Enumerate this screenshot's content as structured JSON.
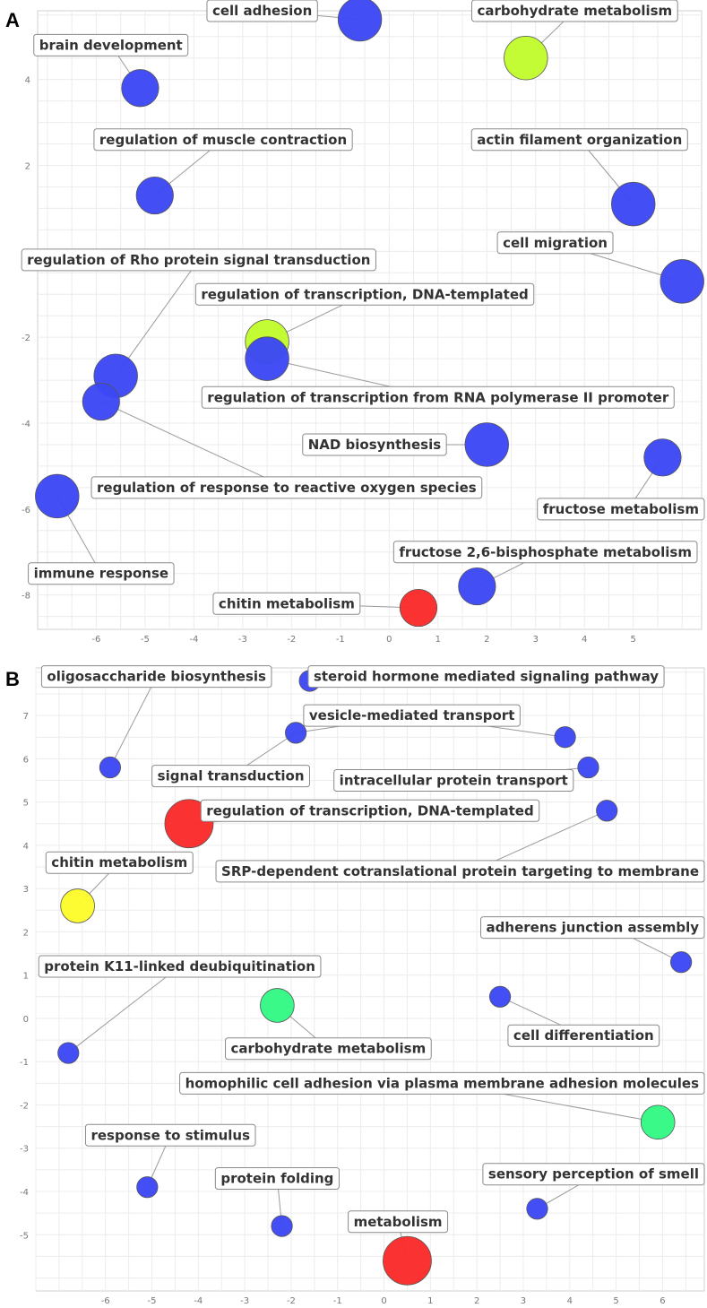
{
  "chart_data": [
    {
      "panel": "A",
      "type": "scatter",
      "title": "",
      "xlabel": "",
      "ylabel": "",
      "xlim": [
        -7.2,
        6.4
      ],
      "ylim": [
        -8.8,
        5.6
      ],
      "xticks": [
        -6,
        -5,
        -4,
        -3,
        -2,
        -1,
        0,
        1,
        2,
        3,
        4,
        5
      ],
      "yticks": [
        4,
        2,
        0,
        -2,
        -4,
        -6,
        -8
      ],
      "grid": true,
      "points": [
        {
          "label": "cell adhesion",
          "x": -0.6,
          "y": 5.4,
          "size": "large",
          "color": "#3d48f5",
          "label_pos": [
            -2.6,
            5.6
          ]
        },
        {
          "label": "carbohydrate metabolism",
          "x": 2.8,
          "y": 4.5,
          "size": "large",
          "color": "#c1fb2e",
          "label_pos": [
            3.8,
            5.6
          ]
        },
        {
          "label": "brain development",
          "x": -5.1,
          "y": 3.8,
          "size": "medium",
          "color": "#3d48f5",
          "label_pos": [
            -5.7,
            4.8
          ]
        },
        {
          "label": "regulation of muscle contraction",
          "x": -4.8,
          "y": 1.3,
          "size": "medium",
          "color": "#3d48f5",
          "label_pos": [
            -3.4,
            2.6
          ]
        },
        {
          "label": "actin filament organization",
          "x": 5.0,
          "y": 1.1,
          "size": "large",
          "color": "#3d48f5",
          "label_pos": [
            3.9,
            2.6
          ]
        },
        {
          "label": "cell migration",
          "x": 6.0,
          "y": -0.7,
          "size": "large",
          "color": "#3d48f5",
          "label_pos": [
            3.4,
            0.2
          ]
        },
        {
          "label": "regulation of Rho protein signal transduction",
          "x": -5.6,
          "y": -2.9,
          "size": "large",
          "color": "#3d48f5",
          "label_pos": [
            -3.9,
            -0.2
          ]
        },
        {
          "label": "regulation of transcription, DNA-templated",
          "x": -2.5,
          "y": -2.1,
          "size": "large",
          "color": "#c1fb2e",
          "label_pos": [
            -0.5,
            -1.0
          ]
        },
        {
          "label": "regulation of transcription from RNA polymerase II promoter",
          "x": -2.5,
          "y": -2.5,
          "size": "large",
          "color": "#3d48f5",
          "label_pos": [
            1.0,
            -3.4
          ]
        },
        {
          "label": "regulation of response to reactive oxygen species",
          "x": -5.9,
          "y": -3.5,
          "size": "medium",
          "color": "#3d48f5",
          "label_pos": [
            -2.1,
            -5.5
          ]
        },
        {
          "label": "NAD biosynthesis",
          "x": 2.0,
          "y": -4.5,
          "size": "large",
          "color": "#3d48f5",
          "label_pos": [
            -0.3,
            -4.5
          ]
        },
        {
          "label": "immune response",
          "x": -6.8,
          "y": -5.7,
          "size": "large",
          "color": "#3d48f5",
          "label_pos": [
            -5.9,
            -7.5
          ]
        },
        {
          "label": "fructose metabolism",
          "x": 5.6,
          "y": -4.8,
          "size": "medium",
          "color": "#3d48f5",
          "label_pos": [
            4.9,
            -6.0
          ]
        },
        {
          "label": "fructose 2,6-bisphosphate metabolism",
          "x": 1.8,
          "y": -7.8,
          "size": "medium",
          "color": "#3d48f5",
          "label_pos": [
            3.2,
            -7.0
          ]
        },
        {
          "label": "chitin metabolism",
          "x": 0.6,
          "y": -8.3,
          "size": "medium",
          "color": "#fb2b2b",
          "label_pos": [
            -2.1,
            -8.2
          ]
        }
      ]
    },
    {
      "panel": "B",
      "type": "scatter",
      "title": "",
      "xlabel": "",
      "ylabel": "",
      "xlim": [
        -7.5,
        6.9
      ],
      "ylim": [
        -6.3,
        8.1
      ],
      "xticks": [
        -6,
        -5,
        -4,
        -3,
        -2,
        -1,
        0,
        1,
        2,
        3,
        4,
        5,
        6
      ],
      "yticks": [
        7,
        6,
        5,
        4,
        3,
        2,
        1,
        0,
        -1,
        -2,
        -3,
        -4,
        -5
      ],
      "grid": true,
      "points": [
        {
          "label": "oligosaccharide biosynthesis",
          "x": -5.9,
          "y": 5.8,
          "size": "small",
          "color": "#3d48f5",
          "label_pos": [
            -4.9,
            7.9
          ]
        },
        {
          "label": "steroid hormone mediated signaling pathway",
          "x": -1.6,
          "y": 7.8,
          "size": "small",
          "color": "#3d48f5",
          "label_pos": [
            2.2,
            7.9
          ]
        },
        {
          "label": "vesicle-mediated transport",
          "x": -1.9,
          "y": 6.6,
          "size": "small",
          "color": "#3d48f5",
          "label_pos": [
            0.6,
            7.0
          ]
        },
        {
          "label": "vesicle-mediated transport",
          "x": 3.9,
          "y": 6.5,
          "size": "small",
          "color": "#3d48f5",
          "label_pos": [
            0.6,
            7.0
          ],
          "duplicate_of_label": true
        },
        {
          "label": "intracellular protein transport",
          "x": 4.4,
          "y": 5.8,
          "size": "small",
          "color": "#3d48f5",
          "label_pos": [
            1.5,
            5.5
          ]
        },
        {
          "label": "signal transduction",
          "x": -1.9,
          "y": 6.6,
          "size": "small",
          "color": "#3d48f5",
          "label_pos": [
            -3.3,
            5.6
          ],
          "shares_point_with": "vesicle-mediated transport"
        },
        {
          "label": "regulation of transcription, DNA-templated",
          "x": -4.2,
          "y": 4.5,
          "size": "large",
          "color": "#fb2b2b",
          "label_pos": [
            -0.3,
            4.8
          ]
        },
        {
          "label": "SRP-dependent cotranslational protein targeting to membrane",
          "x": 4.8,
          "y": 4.8,
          "size": "small",
          "color": "#3d48f5",
          "label_pos": [
            1.9,
            3.4
          ]
        },
        {
          "label": "chitin metabolism",
          "x": -6.6,
          "y": 2.6,
          "size": "medium",
          "color": "#fdfb2a",
          "label_pos": [
            -5.7,
            3.6
          ]
        },
        {
          "label": "adherens junction assembly",
          "x": 6.4,
          "y": 1.3,
          "size": "small",
          "color": "#3d48f5",
          "label_pos": [
            4.9,
            2.1
          ]
        },
        {
          "label": "protein K11-linked deubiquitination",
          "x": -6.8,
          "y": -0.8,
          "size": "small",
          "color": "#3d48f5",
          "label_pos": [
            -4.4,
            1.2
          ]
        },
        {
          "label": "carbohydrate metabolism",
          "x": -2.3,
          "y": 0.3,
          "size": "medium",
          "color": "#34f985",
          "label_pos": [
            -1.2,
            -0.7
          ]
        },
        {
          "label": "cell differentiation",
          "x": 2.5,
          "y": 0.5,
          "size": "small",
          "color": "#3d48f5",
          "label_pos": [
            4.3,
            -0.4
          ]
        },
        {
          "label": "homophilic cell adhesion via plasma membrane adhesion molecules",
          "x": 5.9,
          "y": -2.4,
          "size": "medium",
          "color": "#34f985",
          "label_pos": [
            1.3,
            -1.5
          ]
        },
        {
          "label": "response to stimulus",
          "x": -5.1,
          "y": -3.9,
          "size": "small",
          "color": "#3d48f5",
          "label_pos": [
            -4.6,
            -2.7
          ]
        },
        {
          "label": "protein folding",
          "x": -2.2,
          "y": -4.8,
          "size": "small",
          "color": "#3d48f5",
          "label_pos": [
            -2.3,
            -3.7
          ]
        },
        {
          "label": "sensory perception of smell",
          "x": 3.3,
          "y": -4.4,
          "size": "small",
          "color": "#3d48f5",
          "label_pos": [
            4.6,
            -3.6
          ]
        },
        {
          "label": "metabolism",
          "x": 0.5,
          "y": -5.6,
          "size": "large",
          "color": "#fb2b2b",
          "label_pos": [
            0.3,
            -4.7
          ]
        }
      ]
    }
  ],
  "panel_letters": {
    "a": "A",
    "b": "B"
  }
}
